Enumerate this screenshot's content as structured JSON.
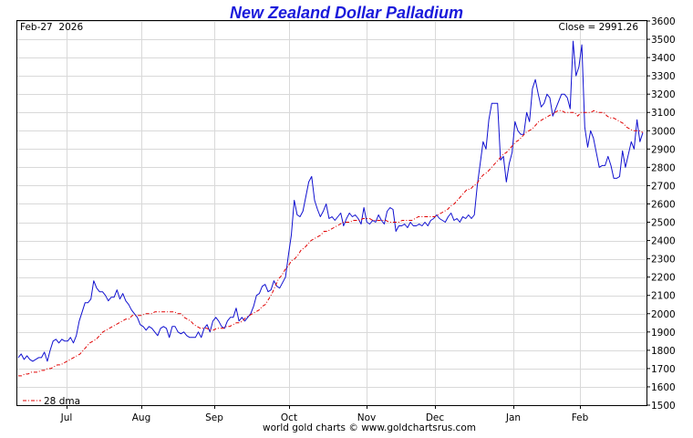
{
  "chart_data": {
    "type": "line",
    "title": "New Zealand Dollar Palladium",
    "date_label": "Feb-27  2026",
    "close_label": "Close = 2991.26",
    "footer": "world gold charts © www.goldchartsrus.com",
    "ylim": [
      1500,
      3600
    ],
    "y_ticks": [
      1500,
      1600,
      1700,
      1800,
      1900,
      2000,
      2100,
      2200,
      2300,
      2400,
      2500,
      2600,
      2700,
      2800,
      2900,
      3000,
      3100,
      3200,
      3300,
      3400,
      3500,
      3600
    ],
    "x_ticks": [
      "Jul",
      "Aug",
      "Sep",
      "Oct",
      "Nov",
      "Dec",
      "Jan",
      "Feb"
    ],
    "grid": true,
    "legend_position": "bottom-left",
    "colors": {
      "price": "#1010d0",
      "dma": "#e00000",
      "grid": "#d9d9d9",
      "title": "#1a1adb"
    },
    "series": [
      {
        "name": "",
        "style": "solid",
        "values": [
          1760,
          1780,
          1750,
          1770,
          1750,
          1740,
          1750,
          1760,
          1760,
          1790,
          1740,
          1800,
          1850,
          1860,
          1840,
          1860,
          1850,
          1850,
          1870,
          1840,
          1880,
          1960,
          2010,
          2060,
          2060,
          2080,
          2180,
          2140,
          2120,
          2120,
          2100,
          2070,
          2090,
          2090,
          2130,
          2080,
          2110,
          2070,
          2050,
          2020,
          2000,
          1980,
          1940,
          1930,
          1910,
          1930,
          1920,
          1900,
          1880,
          1920,
          1930,
          1920,
          1870,
          1930,
          1930,
          1900,
          1890,
          1900,
          1880,
          1870,
          1870,
          1870,
          1900,
          1870,
          1920,
          1940,
          1900,
          1960,
          1980,
          1960,
          1930,
          1920,
          1960,
          1980,
          1980,
          2030,
          1960,
          1980,
          1960,
          1980,
          2000,
          2040,
          2100,
          2110,
          2150,
          2160,
          2120,
          2130,
          2180,
          2150,
          2140,
          2170,
          2200,
          2320,
          2430,
          2620,
          2540,
          2530,
          2560,
          2640,
          2720,
          2750,
          2620,
          2570,
          2530,
          2560,
          2600,
          2520,
          2530,
          2510,
          2530,
          2550,
          2480,
          2520,
          2550,
          2530,
          2540,
          2520,
          2490,
          2580,
          2500,
          2490,
          2510,
          2500,
          2540,
          2510,
          2490,
          2560,
          2580,
          2570,
          2450,
          2480,
          2480,
          2490,
          2470,
          2500,
          2480,
          2480,
          2490,
          2480,
          2500,
          2480,
          2510,
          2520,
          2540,
          2520,
          2510,
          2500,
          2530,
          2550,
          2510,
          2520,
          2500,
          2530,
          2520,
          2540,
          2520,
          2540,
          2700,
          2820,
          2940,
          2900,
          3060,
          3150,
          3150,
          3150,
          2840,
          2860,
          2720,
          2820,
          2880,
          3050,
          3000,
          2980,
          2980,
          3100,
          3050,
          3230,
          3280,
          3200,
          3130,
          3150,
          3200,
          3180,
          3080,
          3120,
          3160,
          3200,
          3200,
          3180,
          3120,
          3490,
          3300,
          3350,
          3470,
          3020,
          2910,
          3000,
          2960,
          2880,
          2800,
          2810,
          2810,
          2860,
          2810,
          2740,
          2740,
          2750,
          2890,
          2800,
          2870,
          2940,
          2900,
          3060,
          2940,
          2990
        ]
      },
      {
        "name": "28 dma",
        "style": "dash-dot",
        "values": [
          1660,
          1660,
          1670,
          1670,
          1680,
          1680,
          1680,
          1690,
          1690,
          1700,
          1700,
          1710,
          1720,
          1720,
          1730,
          1740,
          1750,
          1760,
          1770,
          1780,
          1800,
          1820,
          1840,
          1850,
          1860,
          1880,
          1900,
          1910,
          1920,
          1930,
          1940,
          1950,
          1960,
          1970,
          1970,
          1990,
          1990,
          1990,
          1990,
          2000,
          2000,
          2000,
          2010,
          2010,
          2010,
          2010,
          2010,
          2010,
          2010,
          2000,
          2000,
          1980,
          1970,
          1960,
          1940,
          1930,
          1920,
          1920,
          1920,
          1910,
          1910,
          1920,
          1920,
          1920,
          1930,
          1930,
          1940,
          1950,
          1950,
          1960,
          1980,
          1990,
          2000,
          2010,
          2020,
          2040,
          2050,
          2080,
          2110,
          2150,
          2190,
          2210,
          2240,
          2260,
          2290,
          2300,
          2320,
          2350,
          2360,
          2380,
          2400,
          2410,
          2420,
          2430,
          2450,
          2450,
          2460,
          2470,
          2480,
          2490,
          2500,
          2500,
          2500,
          2510,
          2510,
          2510,
          2520,
          2520,
          2520,
          2510,
          2510,
          2510,
          2510,
          2510,
          2500,
          2500,
          2500,
          2500,
          2510,
          2510,
          2510,
          2510,
          2520,
          2530,
          2530,
          2530,
          2530,
          2530,
          2530,
          2540,
          2550,
          2560,
          2570,
          2590,
          2600,
          2620,
          2640,
          2660,
          2680,
          2680,
          2700,
          2710,
          2740,
          2760,
          2770,
          2790,
          2810,
          2830,
          2850,
          2870,
          2880,
          2900,
          2920,
          2940,
          2950,
          2970,
          2990,
          3000,
          3010,
          3030,
          3050,
          3060,
          3070,
          3080,
          3090,
          3100,
          3110,
          3110,
          3100,
          3100,
          3100,
          3100,
          3080,
          3100,
          3100,
          3100,
          3100,
          3110,
          3100,
          3100,
          3100,
          3080,
          3070,
          3070,
          3060,
          3050,
          3040,
          3020,
          3010,
          3000,
          3000,
          3000,
          2990
        ]
      }
    ]
  }
}
